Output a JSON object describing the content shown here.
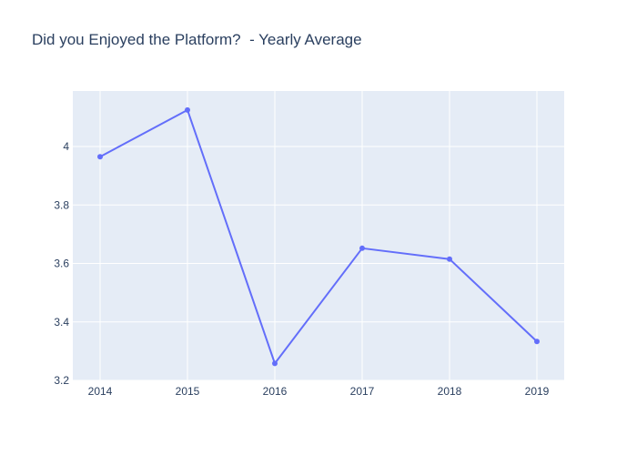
{
  "chart_data": {
    "type": "line",
    "title": "Did you Enjoyed the Platform?  - Yearly Average",
    "xlabel": "",
    "ylabel": "",
    "x": [
      "2014",
      "2015",
      "2016",
      "2017",
      "2018",
      "2019"
    ],
    "series": [
      {
        "values": [
          3.965,
          4.125,
          3.258,
          3.652,
          3.615,
          3.333
        ],
        "color": "#636efa"
      }
    ],
    "ylim": [
      3.2,
      4.19
    ],
    "yticks": [
      3.2,
      3.4,
      3.6,
      3.8,
      4
    ],
    "ytick_labels": [
      "3.2",
      "3.4",
      "3.6",
      "3.8",
      "4"
    ],
    "grid": true,
    "legend": "none",
    "plot_background": "#e5ecf6",
    "grid_color": "#ffffff"
  }
}
